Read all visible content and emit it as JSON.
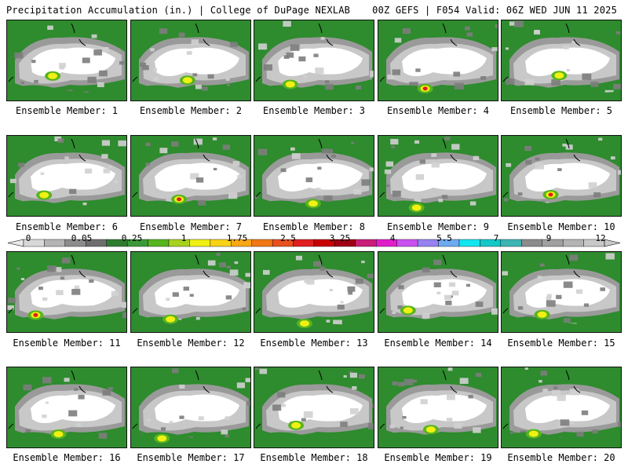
{
  "header": {
    "title": "Precipitation Accumulation (in.) | College of DuPage NEXLAB",
    "run_info": "00Z GEFS | F054 Valid: 06Z WED JUN 11 2025"
  },
  "members": [
    {
      "label": "Ensemble Member: 1"
    },
    {
      "label": "Ensemble Member: 2"
    },
    {
      "label": "Ensemble Member: 3"
    },
    {
      "label": "Ensemble Member: 4"
    },
    {
      "label": "Ensemble Member: 5"
    },
    {
      "label": "Ensemble Member: 6"
    },
    {
      "label": "Ensemble Member: 7"
    },
    {
      "label": "Ensemble Member: 8"
    },
    {
      "label": "Ensemble Member: 9"
    },
    {
      "label": "Ensemble Member: 10"
    },
    {
      "label": "Ensemble Member: 11"
    },
    {
      "label": "Ensemble Member: 12"
    },
    {
      "label": "Ensemble Member: 13"
    },
    {
      "label": "Ensemble Member: 14"
    },
    {
      "label": "Ensemble Member: 15"
    },
    {
      "label": "Ensemble Member: 16"
    },
    {
      "label": "Ensemble Member: 17"
    },
    {
      "label": "Ensemble Member: 18"
    },
    {
      "label": "Ensemble Member: 19"
    },
    {
      "label": "Ensemble Member: 20"
    }
  ],
  "colorbar": {
    "labels": [
      "0",
      "0.05",
      "0.25",
      "1",
      "1.75",
      "2.5",
      "3.25",
      "4",
      "5.5",
      "7",
      "9",
      "12"
    ],
    "colors": [
      "#d8d8d8",
      "#b4b4b4",
      "#8c8c8c",
      "#6e6e6e",
      "#2e7d2e",
      "#3a9a3a",
      "#58b41e",
      "#a8d21e",
      "#f0f014",
      "#f8d214",
      "#f8a814",
      "#f07814",
      "#e8501e",
      "#e01e1e",
      "#c80000",
      "#a00014",
      "#c81e78",
      "#e01ec8",
      "#c850f0",
      "#9682f0",
      "#6eaaf0",
      "#14e6f0",
      "#14c8c8",
      "#3cb4b4",
      "#8c8c8c",
      "#a0a0a0",
      "#b4b4b4",
      "#c8c8c8"
    ]
  }
}
